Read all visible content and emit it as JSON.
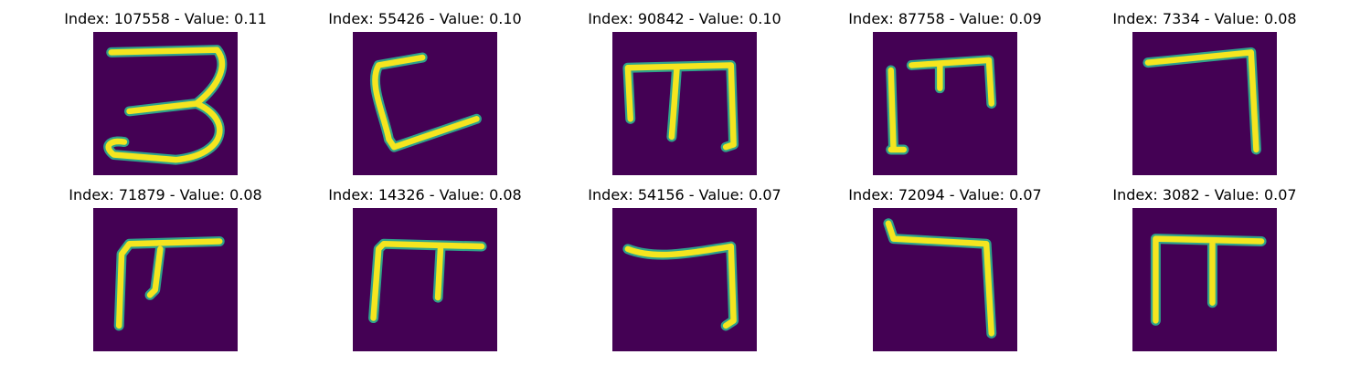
{
  "colors": {
    "background": "#440154",
    "stroke_edge": "#2fa28b",
    "stroke_core": "#f5e51f"
  },
  "panels": [
    {
      "title": "Index: 107558 - Value: 0.11",
      "glyph": "3"
    },
    {
      "title": "Index: 55426 - Value: 0.10",
      "glyph": "C"
    },
    {
      "title": "Index: 90842 - Value: 0.10",
      "glyph": "m"
    },
    {
      "title": "Index: 87758 - Value: 0.09",
      "glyph": "m"
    },
    {
      "title": "Index: 7334 - Value: 0.08",
      "glyph": "7"
    },
    {
      "title": "Index: 71879 - Value: 0.08",
      "glyph": "π"
    },
    {
      "title": "Index: 14326 - Value: 0.08",
      "glyph": "π"
    },
    {
      "title": "Index: 54156 - Value: 0.07",
      "glyph": "7"
    },
    {
      "title": "Index: 72094 - Value: 0.07",
      "glyph": "7"
    },
    {
      "title": "Index: 3082 - Value: 0.07",
      "glyph": "π"
    }
  ]
}
